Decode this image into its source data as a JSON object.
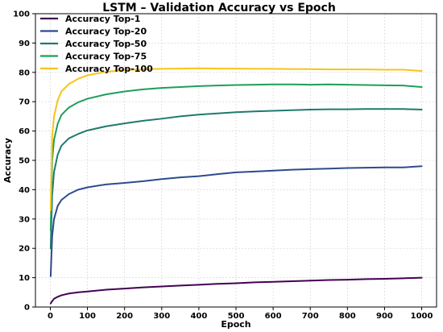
{
  "chart_data": {
    "type": "line",
    "title": "LSTM – Validation Accuracy vs Epoch",
    "xlabel": "Epoch",
    "ylabel": "Accuracy",
    "xlim": [
      -40,
      1040
    ],
    "ylim": [
      0,
      100
    ],
    "xticks": [
      0,
      100,
      200,
      300,
      400,
      500,
      600,
      700,
      800,
      900,
      1000
    ],
    "yticks": [
      0,
      10,
      20,
      30,
      40,
      50,
      60,
      70,
      80,
      90,
      100
    ],
    "grid": true,
    "legend_position": "top-left",
    "x": [
      1,
      5,
      10,
      20,
      30,
      50,
      75,
      100,
      150,
      200,
      250,
      300,
      350,
      400,
      450,
      500,
      550,
      600,
      650,
      700,
      750,
      800,
      850,
      900,
      950,
      1000
    ],
    "series": [
      {
        "name": "Accuracy Top-1",
        "color": "#440154",
        "values": [
          1.2,
          2.0,
          2.8,
          3.5,
          4.0,
          4.6,
          5.0,
          5.3,
          5.9,
          6.3,
          6.7,
          7.0,
          7.3,
          7.6,
          7.9,
          8.1,
          8.4,
          8.6,
          8.8,
          9.0,
          9.2,
          9.3,
          9.5,
          9.6,
          9.8,
          10.0
        ]
      },
      {
        "name": "Accuracy Top-20",
        "color": "#2e4a8e",
        "values": [
          10.5,
          24.0,
          30.0,
          34.5,
          36.5,
          38.5,
          40.0,
          40.8,
          41.8,
          42.3,
          42.9,
          43.6,
          44.2,
          44.6,
          45.3,
          45.9,
          46.2,
          46.5,
          46.8,
          47.0,
          47.2,
          47.4,
          47.5,
          47.6,
          47.6,
          48.0
        ]
      },
      {
        "name": "Accuracy Top-50",
        "color": "#1f7a6e",
        "values": [
          20.0,
          38.0,
          46.0,
          52.0,
          55.0,
          57.5,
          59.0,
          60.2,
          61.6,
          62.6,
          63.5,
          64.2,
          65.0,
          65.6,
          66.0,
          66.4,
          66.7,
          66.9,
          67.1,
          67.3,
          67.4,
          67.4,
          67.5,
          67.5,
          67.5,
          67.3
        ]
      },
      {
        "name": "Accuracy Top-75",
        "color": "#1f9e5a",
        "values": [
          26.0,
          50.0,
          57.0,
          62.5,
          65.5,
          68.0,
          69.8,
          71.0,
          72.5,
          73.5,
          74.2,
          74.7,
          75.0,
          75.3,
          75.5,
          75.7,
          75.8,
          75.9,
          75.9,
          75.8,
          75.9,
          75.8,
          75.7,
          75.6,
          75.5,
          75.0
        ]
      },
      {
        "name": "Accuracy Top-100",
        "color": "#f5c518",
        "values": [
          33.0,
          58.0,
          65.0,
          70.5,
          73.5,
          76.0,
          77.8,
          79.0,
          80.2,
          80.8,
          81.0,
          81.2,
          81.3,
          81.4,
          81.3,
          81.3,
          81.2,
          81.2,
          81.1,
          81.1,
          81.0,
          81.0,
          81.0,
          80.9,
          80.9,
          80.5
        ]
      }
    ]
  }
}
